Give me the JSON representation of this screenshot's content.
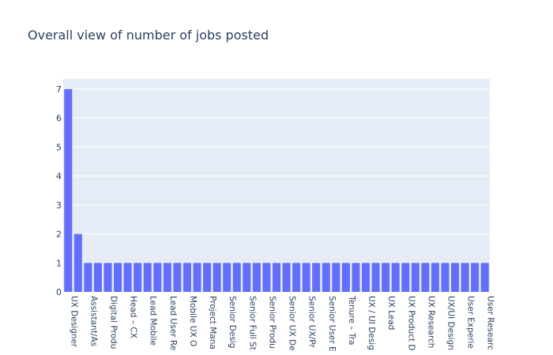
{
  "chart_data": {
    "type": "bar",
    "title": "Overall view of number of jobs posted",
    "xlabel": "",
    "ylabel": "",
    "ylim": [
      0,
      7.35
    ],
    "yticks": [
      0,
      1,
      2,
      3,
      4,
      5,
      6,
      7
    ],
    "grid": true,
    "bar_color": "#636efa",
    "plot_bg": "#e5ecf6",
    "tick_labels": [
      "UX Designer",
      "Assistant/As",
      "Digital Produ",
      "Head – CX",
      "Lead Mobile",
      "Lead User Re",
      "Mobile UX O",
      "Project Mana",
      "Senior Desig",
      "Senior Full St",
      "Senior Produ",
      "Senior UX De",
      "Senior UX/Pr",
      "Senior User E",
      "Tenure – Tra",
      "UX / UI Desig",
      "UX Lead",
      "UX Product D",
      "UX Research",
      "UX/UI Design",
      "User Experie",
      "User Researc"
    ],
    "values": [
      7,
      2,
      1,
      1,
      1,
      1,
      1,
      1,
      1,
      1,
      1,
      1,
      1,
      1,
      1,
      1,
      1,
      1,
      1,
      1,
      1,
      1,
      1,
      1,
      1,
      1,
      1,
      1,
      1,
      1,
      1,
      1,
      1,
      1,
      1,
      1,
      1,
      1,
      1,
      1,
      1,
      1,
      1
    ]
  }
}
